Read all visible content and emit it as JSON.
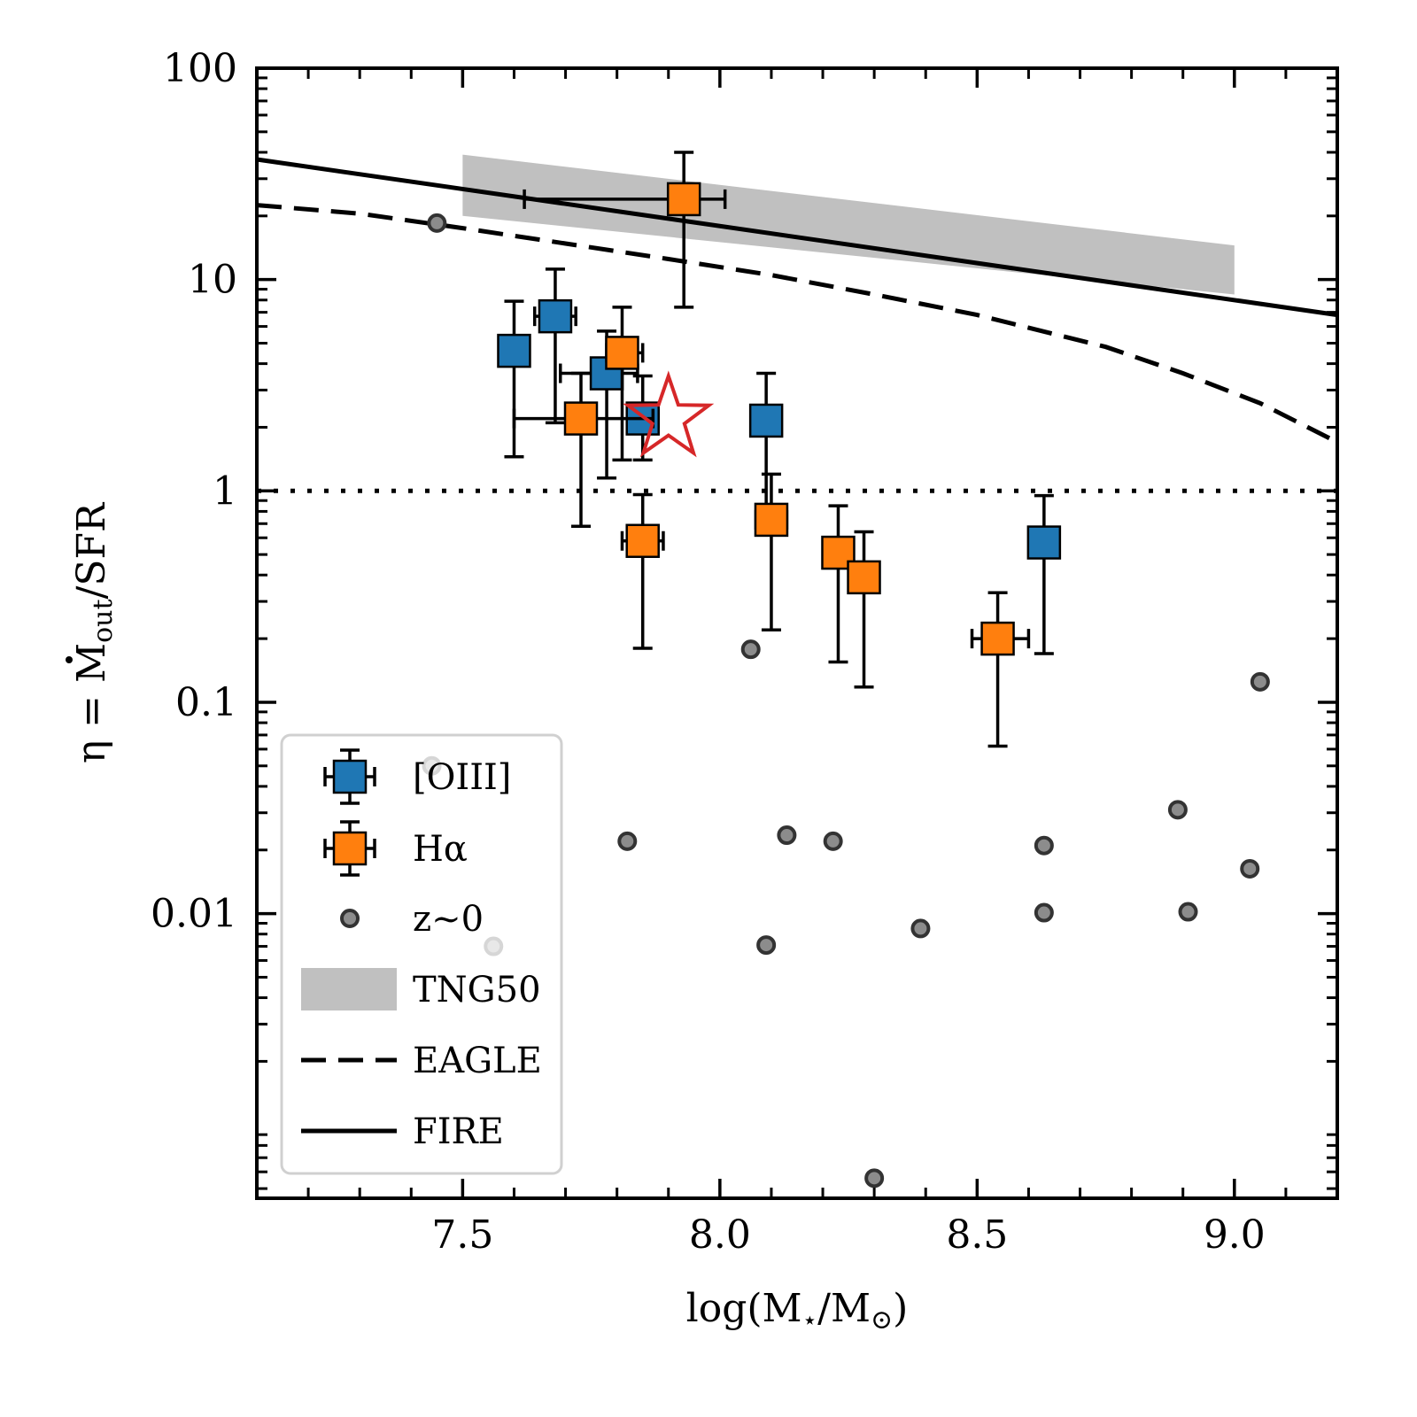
{
  "chart_data": {
    "type": "scatter",
    "xlabel_parts": [
      "log(M",
      "⋆",
      "/M",
      "⊙",
      ")"
    ],
    "ylabel_parts": [
      "η = ",
      "M",
      "out",
      "/SFR"
    ],
    "x_ticks": [
      "7.5",
      "8.0",
      "8.5",
      "9.0"
    ],
    "x_tick_values": [
      7.5,
      8.0,
      8.5,
      9.0
    ],
    "y_ticks": [
      "100",
      "10",
      "1",
      "0.1",
      "0.01"
    ],
    "y_tick_values": [
      100,
      10,
      1,
      0.1,
      0.01
    ],
    "xlim": [
      7.1,
      9.2
    ],
    "ylim": [
      0.00045,
      100
    ],
    "y_scale": "log",
    "legend_position": "lower-left",
    "colors": {
      "oiii": "#1f77b4",
      "halpha": "#ff7f0e",
      "tng50": "#c0c0c0",
      "star": "#d62728",
      "z0": "#8c8c8c"
    },
    "series": [
      {
        "name": "[OIII]",
        "marker": "square",
        "points": [
          {
            "x": 7.6,
            "y": 4.6,
            "ylo": 1.45,
            "yhi": 7.9
          },
          {
            "x": 7.68,
            "y": 6.7,
            "ylo": 2.1,
            "yhi": 11.2,
            "xlo": 7.64,
            "xhi": 7.72
          },
          {
            "x": 7.78,
            "y": 3.6,
            "ylo": 1.15,
            "yhi": 5.7,
            "xlo": 7.69,
            "xhi": 7.84
          },
          {
            "x": 7.85,
            "y": 2.2,
            "ylo": 1.4,
            "yhi": 3.5,
            "xlo": 7.82,
            "xhi": 7.88
          },
          {
            "x": 8.09,
            "y": 2.15,
            "ylo": 0.68,
            "yhi": 3.6
          },
          {
            "x": 8.63,
            "y": 0.57,
            "ylo": 0.17,
            "yhi": 0.95
          }
        ]
      },
      {
        "name": "Hα",
        "marker": "square",
        "points": [
          {
            "x": 7.93,
            "y": 24,
            "ylo": 7.4,
            "yhi": 40,
            "xlo": 7.62,
            "xhi": 8.01
          },
          {
            "x": 7.81,
            "y": 4.5,
            "ylo": 1.4,
            "yhi": 7.4,
            "xlo": 7.78,
            "xhi": 7.85
          },
          {
            "x": 7.73,
            "y": 2.2,
            "ylo": 0.68,
            "yhi": 3.6,
            "xlo": 7.6,
            "xhi": 7.87
          },
          {
            "x": 7.85,
            "y": 0.58,
            "ylo": 0.18,
            "yhi": 0.96,
            "xlo": 7.81,
            "xhi": 7.89
          },
          {
            "x": 8.1,
            "y": 0.73,
            "ylo": 0.22,
            "yhi": 1.2,
            "xlo": 8.07,
            "xhi": 8.13
          },
          {
            "x": 8.23,
            "y": 0.51,
            "ylo": 0.155,
            "yhi": 0.85
          },
          {
            "x": 8.28,
            "y": 0.39,
            "ylo": 0.118,
            "yhi": 0.64
          },
          {
            "x": 8.54,
            "y": 0.2,
            "ylo": 0.062,
            "yhi": 0.33,
            "xlo": 8.49,
            "xhi": 8.6
          }
        ]
      },
      {
        "name": "z~0",
        "marker": "circle",
        "points": [
          {
            "x": 7.45,
            "y": 18.5
          },
          {
            "x": 8.06,
            "y": 0.178
          },
          {
            "x": 9.05,
            "y": 0.125
          },
          {
            "x": 7.82,
            "y": 0.022
          },
          {
            "x": 8.13,
            "y": 0.0235
          },
          {
            "x": 8.22,
            "y": 0.022
          },
          {
            "x": 8.63,
            "y": 0.021
          },
          {
            "x": 8.89,
            "y": 0.031
          },
          {
            "x": 9.03,
            "y": 0.0163
          },
          {
            "x": 8.91,
            "y": 0.0102
          },
          {
            "x": 8.63,
            "y": 0.0101
          },
          {
            "x": 8.39,
            "y": 0.0085
          },
          {
            "x": 8.09,
            "y": 0.0071
          },
          {
            "x": 7.56,
            "y": 0.007
          },
          {
            "x": 8.3,
            "y": 0.00056
          },
          {
            "x": 7.44,
            "y": 0.05
          }
        ]
      }
    ],
    "star_point": {
      "x": 7.9,
      "y": 2.2
    },
    "bands": [
      {
        "name": "TNG50",
        "x": [
          7.5,
          9.0
        ],
        "y_low": [
          20,
          8.5
        ],
        "y_high": [
          39,
          14.5
        ]
      }
    ],
    "lines": [
      {
        "name": "EAGLE",
        "style": "dashed",
        "x": [
          7.1,
          7.3,
          7.5,
          7.7,
          7.9,
          8.1,
          8.3,
          8.5,
          8.75,
          8.9,
          9.05,
          9.2
        ],
        "y": [
          22.5,
          20.5,
          17.5,
          14.8,
          12.5,
          10.5,
          8.5,
          6.8,
          4.8,
          3.6,
          2.6,
          1.7
        ]
      },
      {
        "name": "FIRE",
        "style": "solid",
        "x": [
          7.1,
          9.2
        ],
        "y": [
          37,
          6.8
        ]
      },
      {
        "name": "",
        "style": "dotted",
        "x": [
          7.1,
          9.2
        ],
        "y": [
          1,
          1
        ]
      }
    ],
    "legend": [
      "[OIII]",
      "Hα",
      "z~0",
      "TNG50",
      "EAGLE",
      "FIRE"
    ]
  }
}
